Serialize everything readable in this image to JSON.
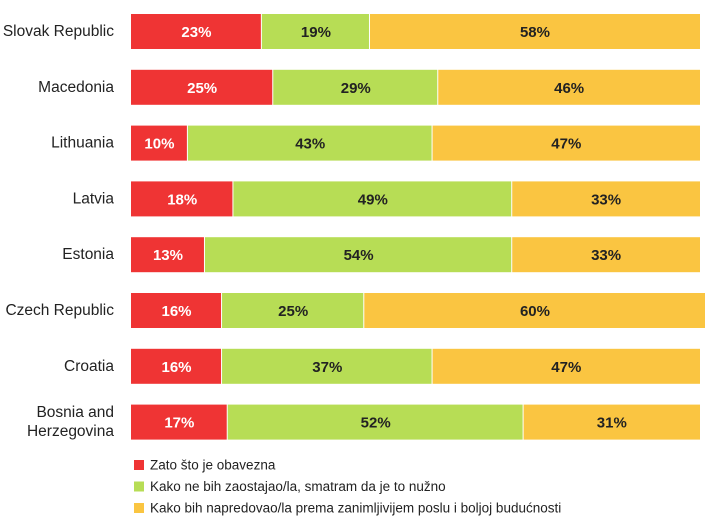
{
  "chart_data": {
    "type": "bar",
    "orientation": "horizontal",
    "stacked": true,
    "percent_stacked": true,
    "title": "",
    "xlabel": "",
    "ylabel": "",
    "xlim": [
      0,
      100
    ],
    "grid": false,
    "legend_position": "bottom-left",
    "categories": [
      "Slovak Republic",
      "Macedonia",
      "Lithuania",
      "Latvia",
      "Estonia",
      "Czech Republic",
      "Croatia",
      "Bosnia and Herzegovina"
    ],
    "category_lines": [
      [
        "Slovak Republic"
      ],
      [
        "Macedonia"
      ],
      [
        "Lithuania"
      ],
      [
        "Latvia"
      ],
      [
        "Estonia"
      ],
      [
        "Czech Republic"
      ],
      [
        "Croatia"
      ],
      [
        "Bosnia and",
        "Herzegovina"
      ]
    ],
    "series": [
      {
        "name": "Zato što je obavezna",
        "color": "#ef3434",
        "label_color": "#ffffff",
        "values": [
          23,
          25,
          10,
          18,
          13,
          16,
          16,
          17
        ]
      },
      {
        "name": "Kako ne bih zaostajao/la, smatram da je to nužno",
        "color": "#b7dd55",
        "label_color": "#222222",
        "values": [
          19,
          29,
          43,
          49,
          54,
          25,
          37,
          52
        ]
      },
      {
        "name": "Kako bih napredovao/la prema zanimljivijem poslu i boljoj budućnosti",
        "color": "#fac541",
        "label_color": "#222222",
        "values": [
          58,
          46,
          47,
          33,
          33,
          60,
          47,
          31
        ]
      }
    ]
  }
}
